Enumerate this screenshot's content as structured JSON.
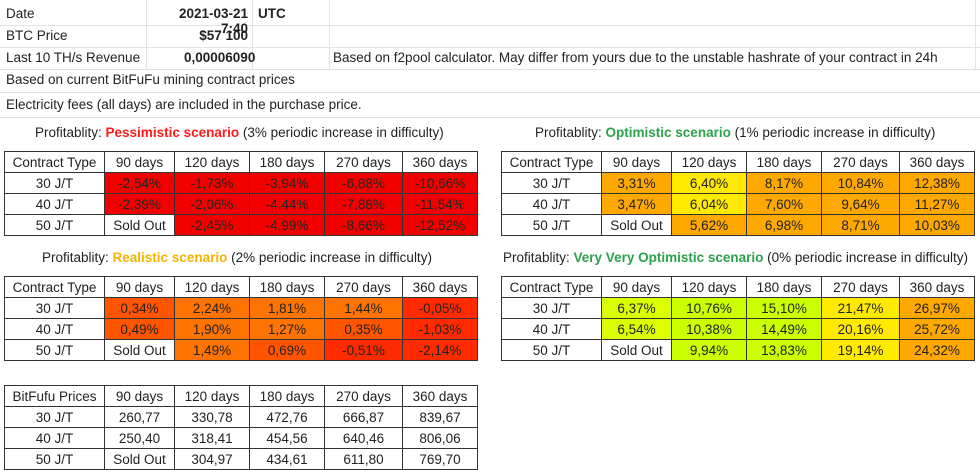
{
  "header": {
    "date_label": "Date",
    "date_value": "2021-03-21 7:40",
    "date_tz": "UTC",
    "btc_label": "BTC Price",
    "btc_value": "$57 100",
    "revenue_label": "Last 10 TH/s Revenue",
    "revenue_value": "0,00006090",
    "revenue_note": "Based on f2pool calculator. May differ from yours due to the unstable hashrate of your contract in 24h",
    "contract_note": "Based on current BitFuFu mining contract prices",
    "electricity_note": "Electricity fees (all days) are included in the purchase price."
  },
  "colors": {
    "deep_red": "#f20000",
    "red": "#ff2a00",
    "orange_red": "#ff5500",
    "orange": "#ff7400",
    "amber": "#ffa800",
    "yellow": "#ffea00",
    "yellow_green": "#dbff00",
    "lime": "#ccff00",
    "white": "#ffffff"
  },
  "tables": {
    "pessimistic": {
      "caption_prefix": "Profitablity: ",
      "scenario": "Pessimistic scenario",
      "caption_suffix": " (3% periodic increase in difficulty)",
      "headers": [
        "Contract Type",
        "90 days",
        "120 days",
        "180 days",
        "270 days",
        "360 days"
      ],
      "rows": [
        {
          "label": "30 J/T",
          "cells": [
            {
              "v": "-2,54%",
              "c": "deep_red"
            },
            {
              "v": "-1,73%",
              "c": "deep_red"
            },
            {
              "v": "-3,94%",
              "c": "deep_red"
            },
            {
              "v": "-6,88%",
              "c": "deep_red"
            },
            {
              "v": "-10,66%",
              "c": "deep_red"
            }
          ]
        },
        {
          "label": "40 J/T",
          "cells": [
            {
              "v": "-2,39%",
              "c": "deep_red"
            },
            {
              "v": "-2,06%",
              "c": "deep_red"
            },
            {
              "v": "-4,44%",
              "c": "deep_red"
            },
            {
              "v": "-7,88%",
              "c": "deep_red"
            },
            {
              "v": "-11,54%",
              "c": "deep_red"
            }
          ]
        },
        {
          "label": "50 J/T",
          "cells": [
            {
              "v": "Sold Out",
              "c": "white"
            },
            {
              "v": "-2,45%",
              "c": "deep_red"
            },
            {
              "v": "-4,99%",
              "c": "deep_red"
            },
            {
              "v": "-8,66%",
              "c": "deep_red"
            },
            {
              "v": "-12,52%",
              "c": "deep_red"
            }
          ]
        }
      ]
    },
    "optimistic": {
      "caption_prefix": "Profitablity: ",
      "scenario": "Optimistic scenario",
      "caption_suffix": " (1% periodic increase in difficulty)",
      "headers": [
        "Contract Type",
        "90 days",
        "120 days",
        "180 days",
        "270 days",
        "360 days"
      ],
      "rows": [
        {
          "label": "30 J/T",
          "cells": [
            {
              "v": "3,31%",
              "c": "amber"
            },
            {
              "v": "6,40%",
              "c": "yellow"
            },
            {
              "v": "8,17%",
              "c": "amber"
            },
            {
              "v": "10,84%",
              "c": "amber"
            },
            {
              "v": "12,38%",
              "c": "amber"
            }
          ]
        },
        {
          "label": "40 J/T",
          "cells": [
            {
              "v": "3,47%",
              "c": "amber"
            },
            {
              "v": "6,04%",
              "c": "yellow"
            },
            {
              "v": "7,60%",
              "c": "amber"
            },
            {
              "v": "9,64%",
              "c": "amber"
            },
            {
              "v": "11,27%",
              "c": "amber"
            }
          ]
        },
        {
          "label": "50 J/T",
          "cells": [
            {
              "v": "Sold Out",
              "c": "white"
            },
            {
              "v": "5,62%",
              "c": "amber"
            },
            {
              "v": "6,98%",
              "c": "amber"
            },
            {
              "v": "8,71%",
              "c": "amber"
            },
            {
              "v": "10,03%",
              "c": "amber"
            }
          ]
        }
      ]
    },
    "realistic": {
      "caption_prefix": "Profitablity: ",
      "scenario": "Realistic scenario",
      "caption_suffix": " (2% periodic increase in difficulty)",
      "headers": [
        "Contract Type",
        "90 days",
        "120 days",
        "180 days",
        "270 days",
        "360 days"
      ],
      "rows": [
        {
          "label": "30 J/T",
          "cells": [
            {
              "v": "0,34%",
              "c": "orange_red"
            },
            {
              "v": "2,24%",
              "c": "orange"
            },
            {
              "v": "1,81%",
              "c": "orange"
            },
            {
              "v": "1,44%",
              "c": "orange"
            },
            {
              "v": "-0,05%",
              "c": "red"
            }
          ]
        },
        {
          "label": "40 J/T",
          "cells": [
            {
              "v": "0,49%",
              "c": "orange_red"
            },
            {
              "v": "1,90%",
              "c": "orange"
            },
            {
              "v": "1,27%",
              "c": "orange"
            },
            {
              "v": "0,35%",
              "c": "orange_red"
            },
            {
              "v": "-1,03%",
              "c": "red"
            }
          ]
        },
        {
          "label": "50 J/T",
          "cells": [
            {
              "v": "Sold Out",
              "c": "white"
            },
            {
              "v": "1,49%",
              "c": "orange"
            },
            {
              "v": "0,69%",
              "c": "orange_red"
            },
            {
              "v": "-0,51%",
              "c": "red"
            },
            {
              "v": "-2,14%",
              "c": "red"
            }
          ]
        }
      ]
    },
    "very_optimistic": {
      "caption_prefix": "Profitablity: ",
      "scenario": "Very Very Optimistic scenario",
      "caption_suffix": " (0% periodic increase in difficulty)",
      "headers": [
        "Contract Type",
        "90 days",
        "120 days",
        "180 days",
        "270 days",
        "360 days"
      ],
      "rows": [
        {
          "label": "30 J/T",
          "cells": [
            {
              "v": "6,37%",
              "c": "yellow_green"
            },
            {
              "v": "10,76%",
              "c": "lime"
            },
            {
              "v": "15,10%",
              "c": "lime"
            },
            {
              "v": "21,47%",
              "c": "yellow"
            },
            {
              "v": "26,97%",
              "c": "amber"
            }
          ]
        },
        {
          "label": "40 J/T",
          "cells": [
            {
              "v": "6,54%",
              "c": "yellow_green"
            },
            {
              "v": "10,38%",
              "c": "lime"
            },
            {
              "v": "14,49%",
              "c": "lime"
            },
            {
              "v": "20,16%",
              "c": "yellow"
            },
            {
              "v": "25,72%",
              "c": "amber"
            }
          ]
        },
        {
          "label": "50 J/T",
          "cells": [
            {
              "v": "Sold Out",
              "c": "white"
            },
            {
              "v": "9,94%",
              "c": "lime"
            },
            {
              "v": "13,83%",
              "c": "lime"
            },
            {
              "v": "19,14%",
              "c": "yellow"
            },
            {
              "v": "24,32%",
              "c": "amber"
            }
          ]
        }
      ]
    },
    "prices": {
      "headers": [
        "BitFufu Prices",
        "90 days",
        "120 days",
        "180 days",
        "270 days",
        "360 days"
      ],
      "rows": [
        {
          "label": "30 J/T",
          "cells": [
            {
              "v": "260,77",
              "c": "white"
            },
            {
              "v": "330,78",
              "c": "white"
            },
            {
              "v": "472,76",
              "c": "white"
            },
            {
              "v": "666,87",
              "c": "white"
            },
            {
              "v": "839,67",
              "c": "white"
            }
          ]
        },
        {
          "label": "40 J/T",
          "cells": [
            {
              "v": "250,40",
              "c": "white"
            },
            {
              "v": "318,41",
              "c": "white"
            },
            {
              "v": "454,56",
              "c": "white"
            },
            {
              "v": "640,46",
              "c": "white"
            },
            {
              "v": "806,06",
              "c": "white"
            }
          ]
        },
        {
          "label": "50 J/T",
          "cells": [
            {
              "v": "Sold Out",
              "c": "white"
            },
            {
              "v": "304,97",
              "c": "white"
            },
            {
              "v": "434,61",
              "c": "white"
            },
            {
              "v": "611,80",
              "c": "white"
            },
            {
              "v": "769,70",
              "c": "white"
            }
          ]
        }
      ]
    }
  }
}
